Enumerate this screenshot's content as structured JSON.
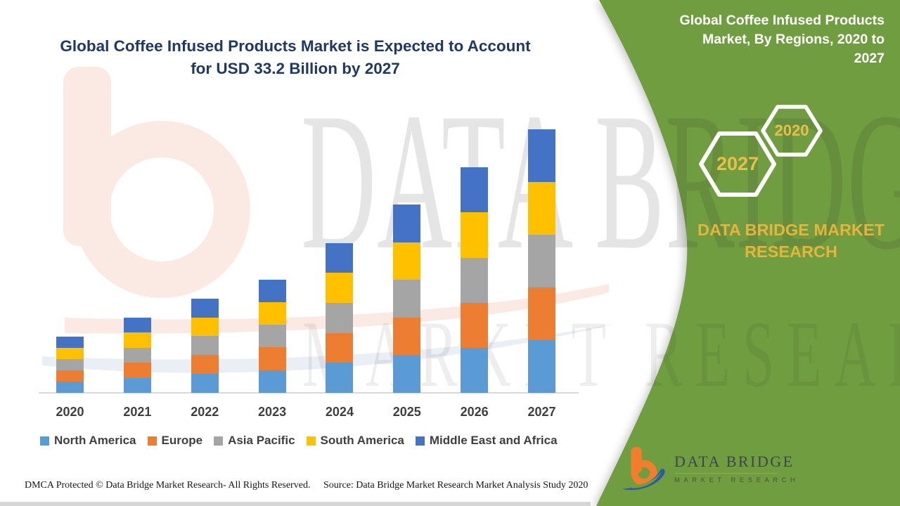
{
  "page": {
    "title_line1": "Global Coffee Infused Products Market is Expected to Account",
    "title_line2": "for USD 33.2 Billion by 2027",
    "watermark_row1": "DATA BRIDGE",
    "watermark_row2": "MARKET RESEARCH"
  },
  "side_panel": {
    "title": "Global Coffee Infused Products Market, By Regions, 2020 to 2027",
    "title_lines": [
      "Global Coffee Infused Products",
      "Market, By Regions, 2020 to",
      "2027"
    ],
    "hexagons": [
      {
        "label": "2027"
      },
      {
        "label": "2020"
      }
    ],
    "brand_text": "DATA BRIDGE MARKET RESEARCH",
    "colors": {
      "background": "#6F9D3F",
      "gold": "#E7B33B",
      "hex_border": "#FFFFFF"
    }
  },
  "footer": {
    "dmca": "DMCA Protected © Data Bridge Market Research- All Rights Reserved.",
    "source": "Source: Data Bridge Market Research Market Analysis Study 2020"
  },
  "logo": {
    "name": "DATA BRIDGE",
    "subtitle": "MARKET RESEARCH"
  },
  "chart_data": {
    "type": "bar",
    "stacked": true,
    "title": "Global Coffee Infused Products Market is Expected to Account for USD 33.2 Billion by 2027",
    "unit": "USD Billion",
    "categories": [
      "2020",
      "2021",
      "2022",
      "2023",
      "2024",
      "2025",
      "2026",
      "2027"
    ],
    "series": [
      {
        "name": "North America",
        "color": "#5B9BD5",
        "values": [
          1.42,
          1.9,
          2.38,
          2.86,
          3.78,
          4.74,
          5.68,
          6.64
        ]
      },
      {
        "name": "Europe",
        "color": "#ED7D31",
        "values": [
          1.42,
          1.9,
          2.38,
          2.86,
          3.78,
          4.74,
          5.68,
          6.64
        ]
      },
      {
        "name": "Asia Pacific",
        "color": "#A5A5A5",
        "values": [
          1.42,
          1.9,
          2.38,
          2.86,
          3.78,
          4.74,
          5.68,
          6.64
        ]
      },
      {
        "name": "South America",
        "color": "#FFC000",
        "values": [
          1.42,
          1.9,
          2.38,
          2.86,
          3.78,
          4.74,
          5.68,
          6.64
        ]
      },
      {
        "name": "Middle East and Africa",
        "color": "#4472C4",
        "values": [
          1.42,
          1.9,
          2.38,
          2.86,
          3.78,
          4.74,
          5.68,
          6.64
        ]
      }
    ],
    "totals": [
      7.1,
      9.5,
      11.9,
      14.3,
      18.9,
      23.7,
      28.4,
      33.2
    ],
    "ylim": [
      0,
      33.2
    ],
    "xlabel": "",
    "ylabel": "",
    "gridlines": false,
    "y_axis_visible": false,
    "legend_position": "bottom"
  }
}
